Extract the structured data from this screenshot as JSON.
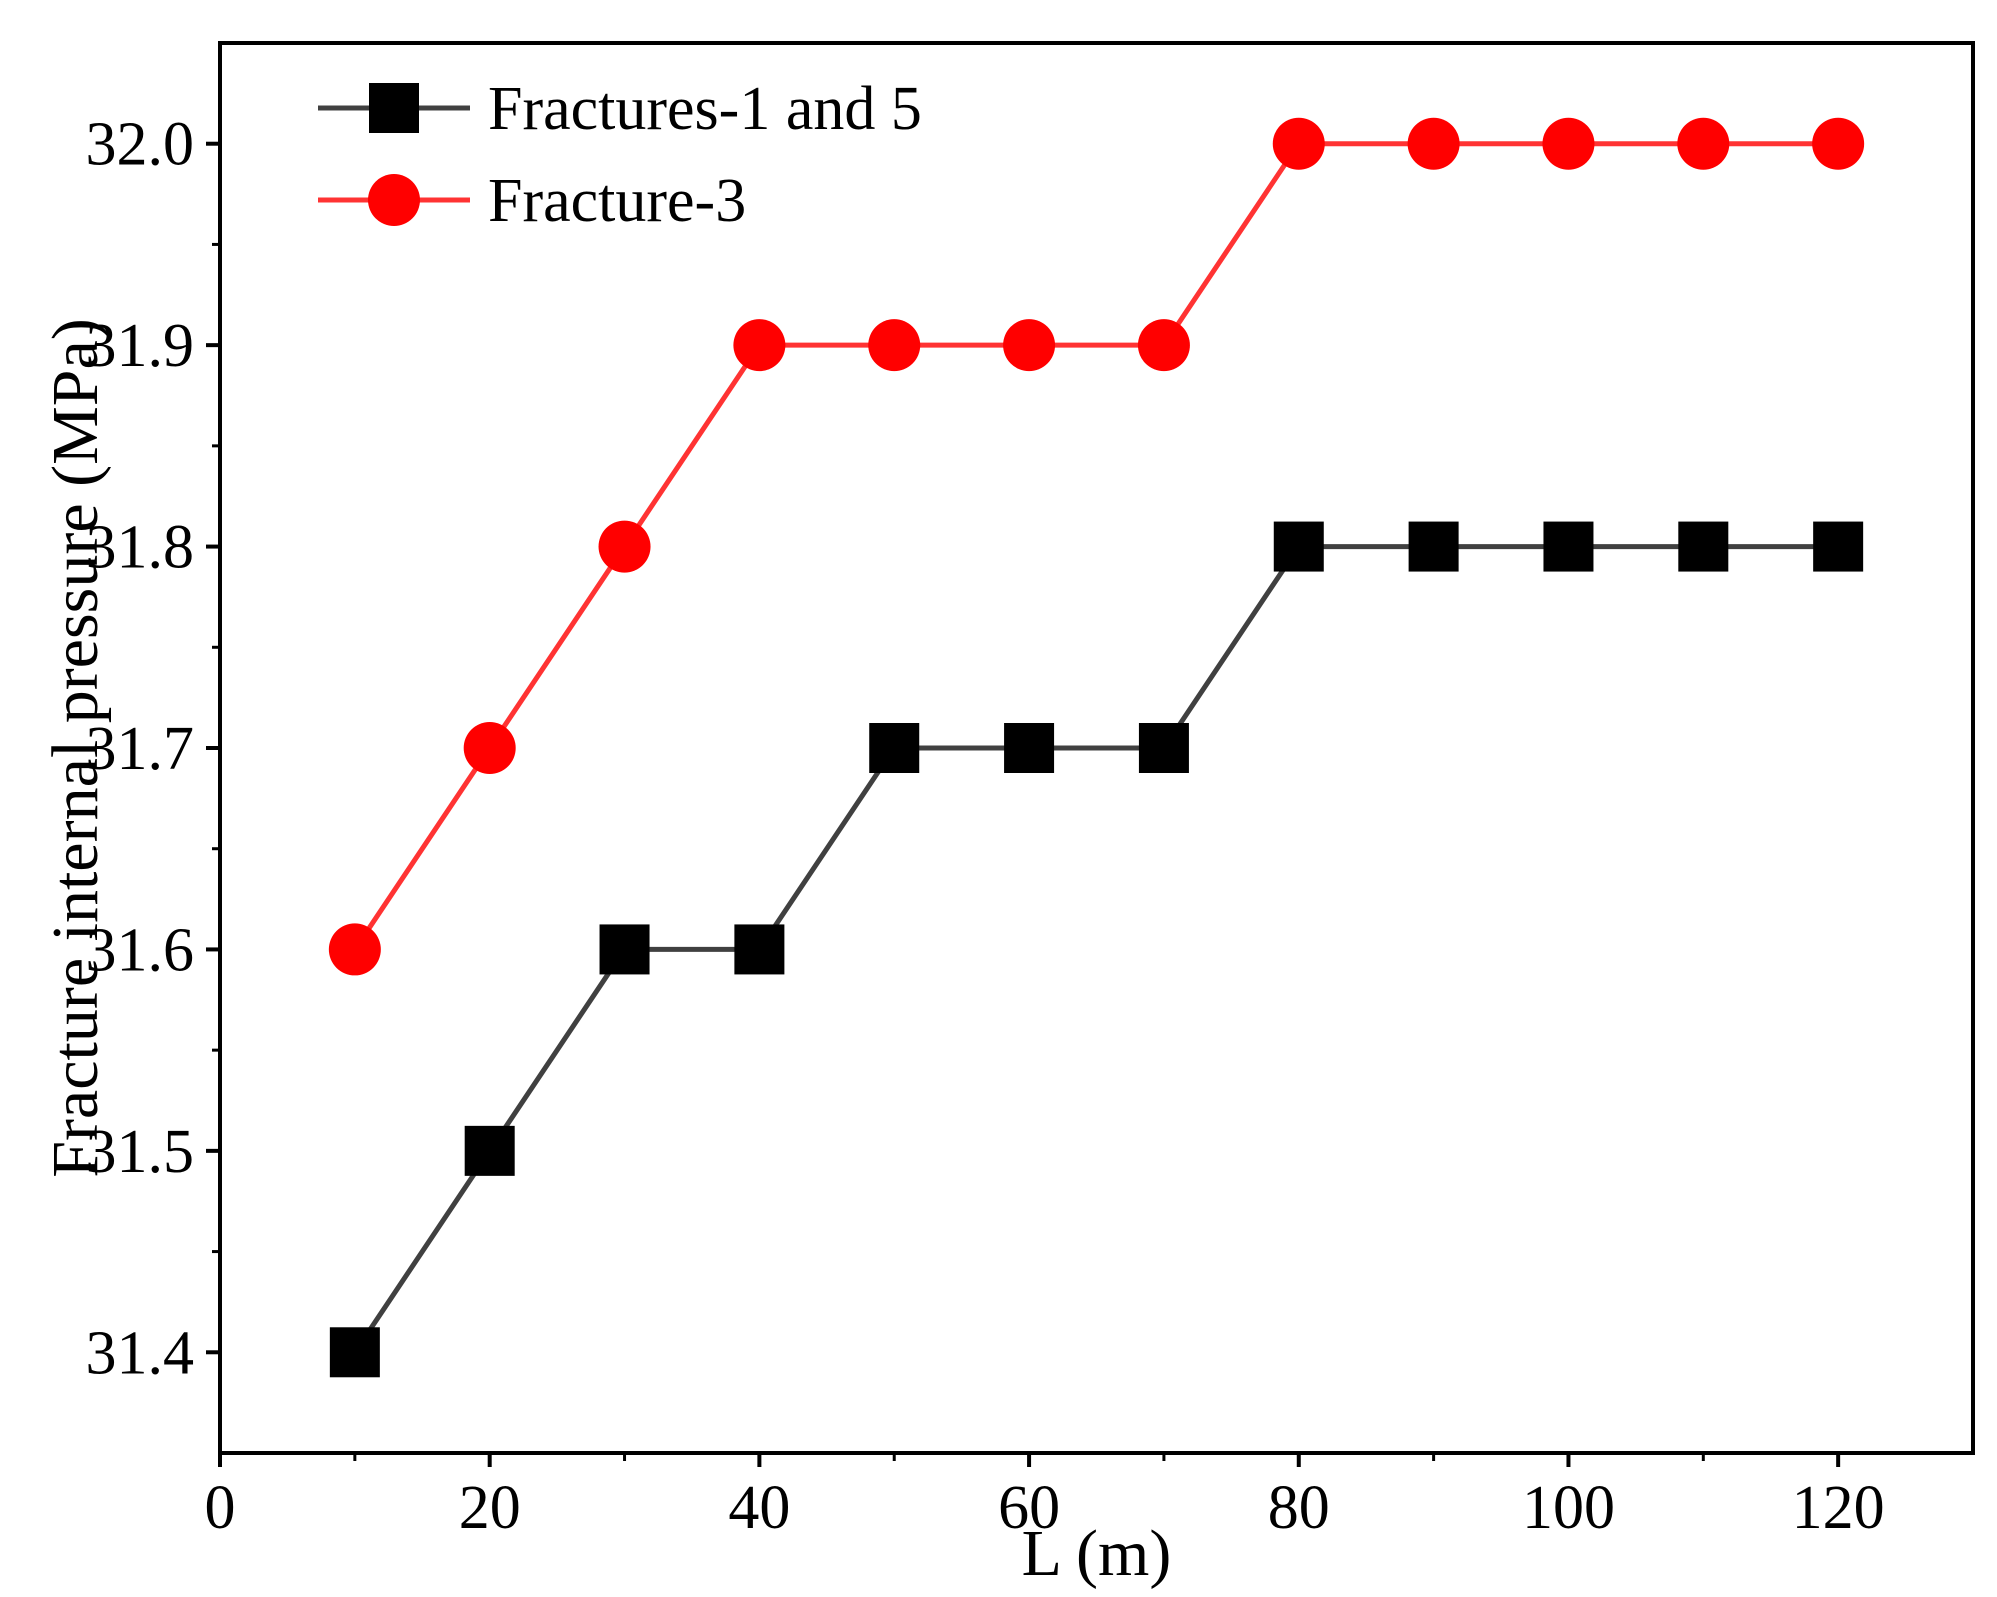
{
  "chart_data": {
    "type": "line",
    "xlabel": "L (m)",
    "ylabel": "Fracture internal pressure (MPa)",
    "xlim": [
      0,
      130
    ],
    "ylim": [
      31.35,
      32.05
    ],
    "xticks": [
      0,
      20,
      40,
      60,
      80,
      100,
      120
    ],
    "xtick_labels": [
      "0",
      "20",
      "40",
      "60",
      "80",
      "100",
      "120"
    ],
    "yticks": [
      31.4,
      31.5,
      31.6,
      31.7,
      31.8,
      31.9,
      32.0
    ],
    "ytick_labels": [
      "31.4",
      "31.5",
      "31.6",
      "31.7",
      "31.8",
      "31.9",
      "32.0"
    ],
    "grid": false,
    "legend_position": "top-left",
    "x": [
      10,
      20,
      30,
      40,
      50,
      60,
      70,
      80,
      90,
      100,
      110,
      120
    ],
    "series": [
      {
        "name": "Fractures-1 and 5",
        "marker": "square",
        "line_color": "#404040",
        "marker_color": "#000000",
        "values": [
          31.4,
          31.5,
          31.6,
          31.6,
          31.7,
          31.7,
          31.7,
          31.8,
          31.8,
          31.8,
          31.8,
          31.8
        ]
      },
      {
        "name": "Fracture-3",
        "marker": "circle",
        "line_color": "#ff3333",
        "marker_color": "#ff0000",
        "values": [
          31.6,
          31.7,
          31.8,
          31.9,
          31.9,
          31.9,
          31.9,
          32.0,
          32.0,
          32.0,
          32.0,
          32.0
        ]
      }
    ]
  }
}
